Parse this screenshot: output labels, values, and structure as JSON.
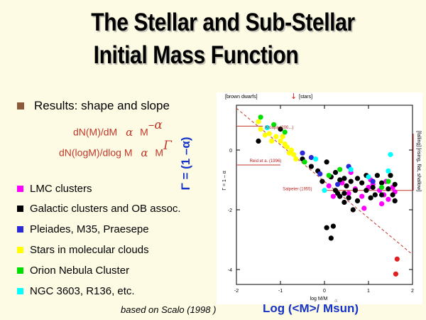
{
  "slide": {
    "title_line1": "The Stellar and Sub-Stellar",
    "title_line2": "Initial Mass Function",
    "results_label": "Results:  shape and slope",
    "eq1_left": "dN(M)/dM",
    "eq1_alpha": "α",
    "eq1_mass": "M",
    "eq1_exp": "–α",
    "eq2_left": "dN(logM)/dlog M",
    "eq2_alpha": "α",
    "eq2_mass": "M",
    "eq2_exp": "Γ",
    "eq_color": "#c0392b",
    "footer_note": "based on Scalo (1998 )",
    "gamma_axis_label": "Γ = (1 –α)",
    "x_axis_big_label": "Log (<M>/ Msun)"
  },
  "legend": [
    {
      "label": "LMC clusters",
      "color": "#ff00ff"
    },
    {
      "label": "Galactic clusters and OB assoc.",
      "color": "#000000"
    },
    {
      "label": "Pleiades, M35, Praesepe",
      "color": "#2a2ad8"
    },
    {
      "label": "Stars in molecular clouds",
      "color": "#ffff00"
    },
    {
      "label": "Orion Nebula Cluster",
      "color": "#00e000"
    },
    {
      "label": "NGC 3603, R136, etc.",
      "color": "#00ffff"
    }
  ],
  "chart_data": {
    "type": "scatter",
    "xlim": [
      -2,
      2
    ],
    "ylim": [
      -4.5,
      1.5
    ],
    "xticks": [
      -2,
      -1,
      0,
      1,
      2
    ],
    "yticks": [
      -4,
      -2,
      0
    ],
    "xlabel": "log M/M",
    "xlabel_sub": "☉",
    "ylabel": "Γ = 1 – α",
    "top_labels": {
      "left": "[brown dwarfs]",
      "arrow": "↓",
      "right": "[stars]"
    },
    "right_labels": {
      "top": "[falling]",
      "bottom": "[rising, flat, shallow]"
    },
    "annotations": [
      {
        "text": "Kroupa (200...)",
        "x": -1.35,
        "y": 0.72
      },
      {
        "text": "Reid et a. (1996)",
        "x": -1.7,
        "y": -0.4
      },
      {
        "text": "Salpeter (1955)",
        "x": -0.95,
        "y": -1.35
      }
    ],
    "series": [
      {
        "name": "LMC clusters",
        "color": "#ff00ff",
        "points": [
          [
            0.1,
            -1.2
          ],
          [
            0.4,
            -1.1
          ],
          [
            0.55,
            -1.45
          ],
          [
            0.7,
            -1.3
          ],
          [
            0.85,
            -1.55
          ],
          [
            1.0,
            -1.25
          ],
          [
            1.1,
            -1.15
          ],
          [
            1.25,
            -1.35
          ],
          [
            1.35,
            -1.5
          ],
          [
            1.4,
            -1.05
          ],
          [
            1.55,
            -1.25
          ],
          [
            0.9,
            -1.95
          ],
          [
            1.05,
            -1.0
          ],
          [
            1.3,
            -1.8
          ],
          [
            0.6,
            -0.75
          ],
          [
            0.2,
            -1.55
          ],
          [
            1.45,
            -1.65
          ],
          [
            1.6,
            -1.4
          ]
        ]
      },
      {
        "name": "Galactic clusters and OB assoc.",
        "color": "#000000",
        "points": [
          [
            -1.5,
            0.3
          ],
          [
            -1.0,
            0.7
          ],
          [
            -0.5,
            -0.3
          ],
          [
            -0.3,
            -0.55
          ],
          [
            -0.15,
            -0.7
          ],
          [
            0.05,
            -0.4
          ],
          [
            0.15,
            -0.9
          ],
          [
            0.25,
            -0.75
          ],
          [
            0.35,
            -1.0
          ],
          [
            0.45,
            -0.95
          ],
          [
            0.5,
            -1.2
          ],
          [
            0.6,
            -1.05
          ],
          [
            0.75,
            -0.95
          ],
          [
            0.85,
            -1.1
          ],
          [
            0.95,
            -1.35
          ],
          [
            1.1,
            -1.25
          ],
          [
            1.15,
            -1.5
          ],
          [
            1.3,
            -1.1
          ],
          [
            1.45,
            -1.3
          ],
          [
            1.6,
            -1.15
          ],
          [
            0.25,
            -1.35
          ],
          [
            0.35,
            -1.55
          ],
          [
            0.45,
            -1.45
          ],
          [
            0.55,
            -1.6
          ],
          [
            0.45,
            -1.75
          ],
          [
            0.3,
            -1.45
          ],
          [
            -0.05,
            -1.05
          ],
          [
            1.3,
            -1.5
          ],
          [
            1.55,
            -1.5
          ],
          [
            1.6,
            -1.7
          ],
          [
            0.05,
            -2.6
          ],
          [
            0.15,
            -2.95
          ],
          [
            0.2,
            -2.55
          ],
          [
            0.7,
            -1.35
          ],
          [
            0.95,
            -0.85
          ],
          [
            1.2,
            -0.85
          ],
          [
            1.5,
            -0.85
          ],
          [
            1.05,
            -1.6
          ],
          [
            0.75,
            -1.7
          ],
          [
            0.65,
            -2.0
          ]
        ]
      },
      {
        "name": "Pleiades, M35, Praesepe",
        "color": "#2a2ad8",
        "points": [
          [
            -0.5,
            -0.1
          ],
          [
            -0.3,
            -0.25
          ],
          [
            -0.1,
            -0.8
          ],
          [
            0.3,
            -1.15
          ],
          [
            0.55,
            -0.55
          ],
          [
            1.1,
            -1.05
          ]
        ]
      },
      {
        "name": "Stars in molecular clouds",
        "color": "#ffff00",
        "points": [
          [
            -1.45,
            0.7
          ],
          [
            -1.25,
            0.55
          ],
          [
            -1.1,
            0.45
          ],
          [
            -1.0,
            0.3
          ],
          [
            -0.9,
            0.2
          ],
          [
            -0.85,
            0.1
          ],
          [
            -0.75,
            0.0
          ],
          [
            -0.7,
            -0.15
          ],
          [
            -0.65,
            -0.3
          ],
          [
            -1.2,
            0.3
          ],
          [
            -1.35,
            0.5
          ],
          [
            -0.8,
            -0.1
          ],
          [
            -0.95,
            0.45
          ],
          [
            -1.5,
            0.95
          ]
        ]
      },
      {
        "name": "Orion Nebula Cluster",
        "color": "#00e000",
        "points": [
          [
            -1.45,
            1.1
          ],
          [
            -1.15,
            0.85
          ],
          [
            -0.9,
            0.6
          ],
          [
            -0.45,
            -0.4
          ],
          [
            0.1,
            -0.85
          ],
          [
            0.35,
            -0.65
          ],
          [
            1.3,
            -1.25
          ],
          [
            1.45,
            -1.05
          ]
        ]
      },
      {
        "name": "NGC 3603, R136, etc.",
        "color": "#00ffff",
        "points": [
          [
            -1.3,
            0.75
          ],
          [
            -0.2,
            -0.3
          ],
          [
            0.0,
            -1.35
          ],
          [
            0.6,
            -0.65
          ],
          [
            1.0,
            -0.9
          ],
          [
            1.45,
            -0.7
          ],
          [
            1.5,
            -0.15
          ]
        ]
      },
      {
        "name": "",
        "color": "#e02020",
        "points": [
          [
            1.65,
            -3.65
          ],
          [
            1.62,
            -4.15
          ]
        ]
      }
    ],
    "lines": [
      {
        "style": "dashed",
        "color": "#c0392b",
        "x1": -2.0,
        "y1": 1.4,
        "x2": 2.0,
        "y2": -3.5
      },
      {
        "style": "solid",
        "color": "#c0392b",
        "x1": -2.0,
        "y1": 0.8,
        "x2": -1.4,
        "y2": 0.8
      },
      {
        "style": "solid",
        "color": "#c0392b",
        "x1": -2.0,
        "y1": -0.5,
        "x2": -1.0,
        "y2": -0.5
      },
      {
        "style": "solid",
        "color": "#c0392b",
        "x1": 0.0,
        "y1": -1.35,
        "x2": 2.0,
        "y2": -1.35
      }
    ]
  }
}
